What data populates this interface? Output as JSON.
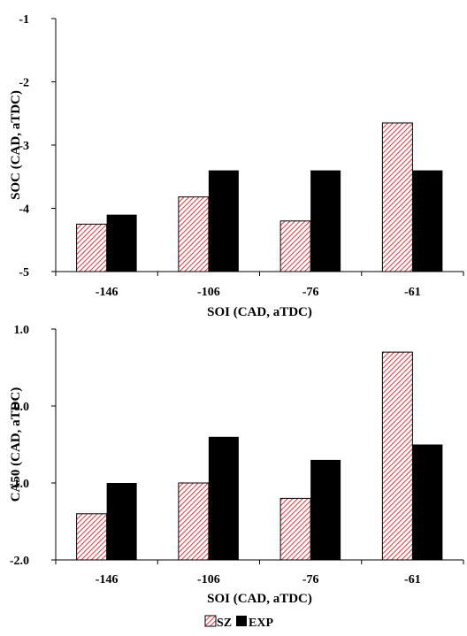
{
  "legend": {
    "entries": [
      {
        "name": "SZ",
        "style": "hatched",
        "color": "#e8414a"
      },
      {
        "name": "EXP",
        "style": "solid",
        "color": "#000000"
      }
    ]
  },
  "chart_data": [
    {
      "type": "bar",
      "categories": [
        "-146",
        "-106",
        "-76",
        "-61"
      ],
      "series": [
        {
          "name": "SZ",
          "values": [
            -4.25,
            -3.82,
            -4.2,
            -2.65
          ]
        },
        {
          "name": "EXP",
          "values": [
            -4.1,
            -3.4,
            -3.4,
            -3.4
          ]
        }
      ],
      "xlabel": "SOI (CAD, aTDC)",
      "ylabel": "SOC (CAD, aTDC)",
      "ylim": [
        -5,
        -1
      ],
      "yticks": [
        "-1",
        "-2",
        "-3",
        "-4",
        "-5"
      ],
      "ytick_values": [
        -1,
        -2,
        -3,
        -4,
        -5
      ],
      "grid": false
    },
    {
      "type": "bar",
      "categories": [
        "-146",
        "-106",
        "-76",
        "-61"
      ],
      "series": [
        {
          "name": "SZ",
          "values": [
            -1.4,
            -1.0,
            -1.2,
            0.7
          ]
        },
        {
          "name": "EXP",
          "values": [
            -1.0,
            -0.4,
            -0.7,
            -0.5
          ]
        }
      ],
      "xlabel": "SOI (CAD, aTDC)",
      "ylabel": "CA50 (CAD, aTDC)",
      "ylim": [
        -2,
        1
      ],
      "yticks": [
        "1.0",
        "0.0",
        "-1.0",
        "-2.0"
      ],
      "ytick_values": [
        1,
        0,
        -1,
        -2
      ],
      "grid": false
    }
  ]
}
